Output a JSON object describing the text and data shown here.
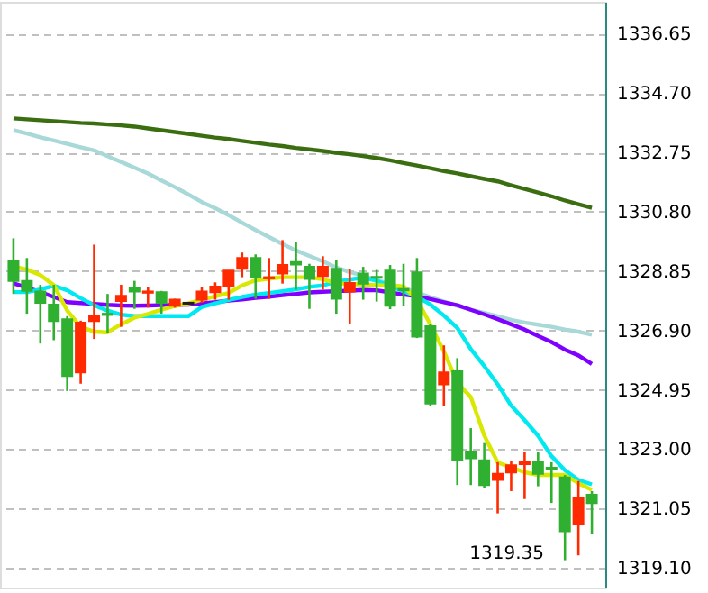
{
  "chart_data": {
    "type": "candlestick",
    "categories": [
      null,
      null,
      null,
      null,
      null,
      null,
      null,
      null,
      null,
      null,
      null,
      null,
      null,
      null,
      null,
      null,
      null,
      null,
      null,
      null,
      null,
      null,
      null,
      null,
      null,
      null,
      null,
      null,
      null,
      null,
      null,
      null,
      null,
      null,
      null,
      null,
      null,
      null,
      null,
      null,
      null,
      null,
      null,
      null
    ],
    "ohlc": [
      [
        1329.18,
        1329.93,
        1328.1,
        1328.53
      ],
      [
        1328.53,
        1329.28,
        1327.45,
        1328.2
      ],
      [
        1328.18,
        1328.4,
        1326.47,
        1327.81
      ],
      [
        1327.75,
        1328.4,
        1326.58,
        1327.21
      ],
      [
        1327.27,
        1327.37,
        1324.91,
        1325.4
      ],
      [
        1325.52,
        1327.22,
        1325.15,
        1327.16
      ],
      [
        1327.21,
        1329.72,
        1326.62,
        1327.39
      ],
      [
        1327.45,
        1328.1,
        1326.82,
        1327.41
      ],
      [
        1327.87,
        1328.4,
        1327.02,
        1328.04
      ],
      [
        1328.28,
        1328.53,
        1327.61,
        1328.18
      ],
      [
        1328.14,
        1328.34,
        1327.65,
        1328.18
      ],
      [
        1328.16,
        1328.2,
        1327.45,
        1327.81
      ],
      [
        1327.71,
        1327.94,
        1327.65,
        1327.91
      ],
      [
        1327.81,
        1327.83,
        1327.76,
        1327.78
      ],
      [
        1327.91,
        1328.34,
        1327.81,
        1328.18
      ],
      [
        1328.16,
        1328.48,
        1327.91,
        1328.34
      ],
      [
        1328.36,
        1328.87,
        1327.91,
        1328.87
      ],
      [
        1328.93,
        1329.46,
        1328.65,
        1329.28
      ],
      [
        1329.28,
        1329.4,
        1327.94,
        1328.65
      ],
      [
        1328.61,
        1329.28,
        1327.94,
        1328.65
      ],
      [
        1328.77,
        1329.87,
        1328.44,
        1329.05
      ],
      [
        1329.15,
        1329.81,
        1328.24,
        1329.07
      ],
      [
        1328.99,
        1329.09,
        1327.61,
        1328.59
      ],
      [
        1328.69,
        1329.34,
        1328.24,
        1328.99
      ],
      [
        1328.93,
        1329.22,
        1327.45,
        1327.94
      ],
      [
        1328.18,
        1328.93,
        1327.12,
        1328.46
      ],
      [
        1328.77,
        1328.99,
        1327.91,
        1328.44
      ],
      [
        1328.66,
        1328.89,
        1327.85,
        1328.63
      ],
      [
        1328.87,
        1329.05,
        1327.6,
        1327.71
      ],
      [
        1328.26,
        1329.09,
        1327.71,
        1328.22
      ],
      [
        1328.81,
        1329.28,
        1326.65,
        1326.7
      ],
      [
        1327.04,
        1327.1,
        1324.42,
        1324.5
      ],
      [
        1325.13,
        1326.41,
        1324.42,
        1325.52
      ],
      [
        1325.56,
        1325.99,
        1321.82,
        1322.65
      ],
      [
        1322.92,
        1323.69,
        1321.82,
        1322.7
      ],
      [
        1322.63,
        1323.2,
        1321.72,
        1321.82
      ],
      [
        1321.99,
        1322.57,
        1320.89,
        1322.19
      ],
      [
        1322.23,
        1322.61,
        1321.62,
        1322.47
      ],
      [
        1322.51,
        1322.9,
        1321.36,
        1322.57
      ],
      [
        1322.57,
        1322.9,
        1321.78,
        1322.19
      ],
      [
        1322.39,
        1322.57,
        1321.23,
        1322.35
      ],
      [
        1322.07,
        1322.15,
        1319.35,
        1320.3
      ],
      [
        1320.52,
        1321.95,
        1319.51,
        1321.38
      ],
      [
        1321.5,
        1321.62,
        1320.22,
        1321.23
      ]
    ],
    "colors": [
      "#30b030",
      "#30b030",
      "#30b030",
      "#30b030",
      "#30b030",
      "#ff2a00",
      "#ff2a00",
      "#30b030",
      "#ff2a00",
      "#30b030",
      "#ff2a00",
      "#30b030",
      "#ff2a00",
      "#202020",
      "#ff2a00",
      "#ff2a00",
      "#ff2a00",
      "#ff2a00",
      "#30b030",
      "#ff2a00",
      "#ff2a00",
      "#30b030",
      "#30b030",
      "#ff2a00",
      "#30b030",
      "#ff2a00",
      "#30b030",
      "#30b030",
      "#30b030",
      "#30b030",
      "#30b030",
      "#30b030",
      "#ff2a00",
      "#30b030",
      "#30b030",
      "#30b030",
      "#ff2a00",
      "#ff2a00",
      "#ff2a00",
      "#30b030",
      "#30b030",
      "#30b030",
      "#ff2a00",
      "#30b030"
    ],
    "series": [
      {
        "type": "line",
        "color": "#3a6e10",
        "values": [
          1333.87,
          1333.84,
          1333.81,
          1333.78,
          1333.75,
          1333.72,
          1333.7,
          1333.67,
          1333.64,
          1333.6,
          1333.54,
          1333.48,
          1333.42,
          1333.36,
          1333.3,
          1333.24,
          1333.19,
          1333.13,
          1333.07,
          1333.01,
          1332.96,
          1332.9,
          1332.85,
          1332.8,
          1332.74,
          1332.69,
          1332.63,
          1332.57,
          1332.49,
          1332.4,
          1332.32,
          1332.23,
          1332.14,
          1332.06,
          1331.97,
          1331.88,
          1331.8,
          1331.67,
          1331.55,
          1331.43,
          1331.31,
          1331.17,
          1331.05,
          1330.93
        ]
      },
      {
        "type": "line",
        "color": "#a8d8d8",
        "values": [
          1333.48,
          1333.37,
          1333.25,
          1333.14,
          1333.03,
          1332.92,
          1332.82,
          1332.63,
          1332.44,
          1332.25,
          1332.06,
          1331.83,
          1331.61,
          1331.37,
          1331.12,
          1330.92,
          1330.69,
          1330.44,
          1330.2,
          1329.97,
          1329.74,
          1329.53,
          1329.35,
          1329.17,
          1328.97,
          1328.82,
          1328.7,
          1328.55,
          1328.43,
          1328.3,
          1328.15,
          1327.99,
          1327.85,
          1327.71,
          1327.58,
          1327.48,
          1327.37,
          1327.25,
          1327.16,
          1327.09,
          1327.02,
          1326.93,
          1326.86,
          1326.76
        ]
      },
      {
        "type": "line",
        "color": "#7f00ff",
        "values": [
          1328.45,
          1328.31,
          1328.16,
          1328.0,
          1327.83,
          1327.8,
          1327.77,
          1327.74,
          1327.72,
          1327.71,
          1327.72,
          1327.73,
          1327.74,
          1327.75,
          1327.79,
          1327.83,
          1327.88,
          1327.92,
          1327.97,
          1328.01,
          1328.06,
          1328.1,
          1328.15,
          1328.17,
          1328.19,
          1328.21,
          1328.23,
          1328.22,
          1328.15,
          1328.08,
          1328.02,
          1327.93,
          1327.83,
          1327.73,
          1327.58,
          1327.43,
          1327.27,
          1327.1,
          1326.93,
          1326.72,
          1326.52,
          1326.27,
          1326.08,
          1325.8
        ]
      },
      {
        "type": "line",
        "color": "#00e8f0",
        "values": [
          1328.16,
          1328.16,
          1328.25,
          1328.37,
          1328.22,
          1327.96,
          1327.73,
          1327.55,
          1327.42,
          1327.37,
          1327.37,
          1327.37,
          1327.37,
          1327.37,
          1327.67,
          1327.79,
          1327.9,
          1328.0,
          1328.08,
          1328.13,
          1328.19,
          1328.25,
          1328.33,
          1328.38,
          1328.5,
          1328.57,
          1328.64,
          1328.53,
          1328.36,
          1328.19,
          1328.01,
          1327.75,
          1327.39,
          1326.98,
          1326.29,
          1325.73,
          1325.13,
          1324.43,
          1323.95,
          1323.44,
          1322.77,
          1322.31,
          1321.99,
          1321.84
        ]
      },
      {
        "type": "line",
        "color": "#d8e800",
        "values": [
          1329.0,
          1328.9,
          1328.72,
          1328.39,
          1327.55,
          1327.02,
          1326.86,
          1326.84,
          1327.1,
          1327.32,
          1327.44,
          1327.58,
          1327.7,
          1327.79,
          1327.91,
          1328.02,
          1328.13,
          1328.38,
          1328.55,
          1328.6,
          1328.65,
          1328.65,
          1328.65,
          1328.58,
          1328.45,
          1328.43,
          1328.41,
          1328.39,
          1328.37,
          1328.35,
          1327.91,
          1327.09,
          1326.21,
          1325.18,
          1324.71,
          1323.45,
          1322.56,
          1322.4,
          1322.24,
          1322.15,
          1322.15,
          1322.15,
          1321.88,
          1321.66
        ]
      }
    ],
    "ylim": [
      1318.45,
      1337.7
    ],
    "yticks": [
      {
        "value": 1336.65,
        "label": "1336.65"
      },
      {
        "value": 1334.7,
        "label": "1334.70"
      },
      {
        "value": 1332.75,
        "label": "1332.75"
      },
      {
        "value": 1330.8,
        "label": "1330.80"
      },
      {
        "value": 1328.85,
        "label": "1328.85"
      },
      {
        "value": 1326.9,
        "label": "1326.90"
      },
      {
        "value": 1324.95,
        "label": "1324.95"
      },
      {
        "value": 1323.0,
        "label": "1323.00"
      },
      {
        "value": 1321.05,
        "label": "1321.05"
      },
      {
        "value": 1319.1,
        "label": "1319.10"
      }
    ],
    "annotations": [
      "1319.35"
    ],
    "grid": "y",
    "tick_labels": "y"
  }
}
